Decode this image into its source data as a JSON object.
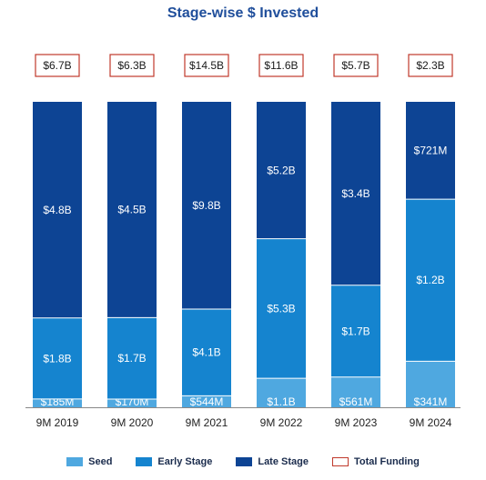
{
  "chart_data": {
    "type": "bar",
    "stacked": true,
    "title": "Stage-wise $ Invested",
    "categories": [
      "9M 2019",
      "9M 2020",
      "9M 2021",
      "9M 2022",
      "9M 2023",
      "9M 2024"
    ],
    "series": [
      {
        "name": "Seed",
        "color": "#4fa8e0",
        "values": [
          0.185,
          0.17,
          0.544,
          1.1,
          0.561,
          0.341
        ],
        "labels": [
          "$185M",
          "$170M",
          "$544M",
          "$1.1B",
          "$561M",
          "$341M"
        ]
      },
      {
        "name": "Early Stage",
        "color": "#1584cf",
        "values": [
          1.8,
          1.7,
          4.1,
          5.3,
          1.7,
          1.2
        ],
        "labels": [
          "$1.8B",
          "$1.7B",
          "$4.1B",
          "$5.3B",
          "$1.7B",
          "$1.2B"
        ]
      },
      {
        "name": "Late Stage",
        "color": "#0d4494",
        "values": [
          4.8,
          4.5,
          9.8,
          5.2,
          3.4,
          0.721
        ],
        "labels": [
          "$4.8B",
          "$4.5B",
          "$9.8B",
          "$5.2B",
          "$3.4B",
          "$721M"
        ]
      }
    ],
    "totals": {
      "name": "Total Funding",
      "values": [
        6.7,
        6.3,
        14.5,
        11.6,
        5.7,
        2.3
      ],
      "labels": [
        "$6.7B",
        "$6.3B",
        "$14.5B",
        "$11.6B",
        "$5.7B",
        "$2.3B"
      ]
    },
    "normalized": true,
    "legend": "bottom",
    "grid": false
  }
}
